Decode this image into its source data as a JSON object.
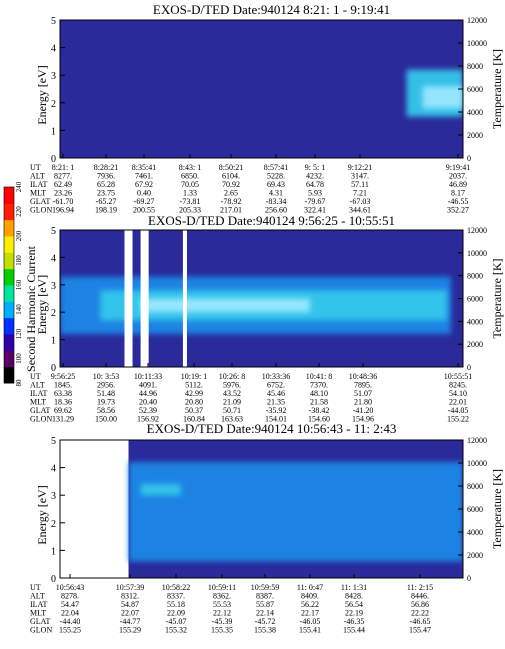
{
  "colors": {
    "background": "#2a2a9a",
    "band_low": "#2f3fc8",
    "band_mid": "#1e88e8",
    "band_core": "#36c8ec",
    "band_bright": "#9ae8ff",
    "gap": "#ffffff"
  },
  "colorbar": {
    "label": "Second Harmonic Current",
    "ticks": [
      "80",
      "100",
      "120",
      "140",
      "160",
      "180",
      "200",
      "220",
      "240"
    ],
    "colors": [
      "#000000",
      "#5a0066",
      "#3000aa",
      "#0030ff",
      "#00b0ff",
      "#00e6a0",
      "#00d000",
      "#c0e000",
      "#ffee00",
      "#ffa000",
      "#ff2000",
      "#ff0000"
    ]
  },
  "chart_data": [
    {
      "type": "heatmap",
      "title": "EXOS-D/TED   Date:940124   8:21: 1 - 9:19:41",
      "ylabel": "Energy [eV]",
      "y2label": "Temperature [K]",
      "ylim": [
        0,
        5
      ],
      "yticks": [
        "0",
        "1",
        "2",
        "3",
        "4",
        "5"
      ],
      "y2lim": [
        0,
        12000
      ],
      "y2ticks": [
        "0",
        "2000",
        "4000",
        "6000",
        "8000",
        "10000",
        "12000"
      ],
      "row_labels": [
        "UT",
        "ALT",
        "ILAT",
        "MLT",
        "GLAT",
        "GLON"
      ],
      "columns": [
        [
          "8:21: 1",
          "8277.",
          "62.49",
          "23.26",
          "-61.70",
          "196.94"
        ],
        [
          "8:28:21",
          "7936.",
          "65.28",
          "23.75",
          "-65.27",
          "198.19"
        ],
        [
          "8:35:41",
          "7461.",
          "67.92",
          "0.40",
          "-69.27",
          "200.55"
        ],
        [
          "8:43: 1",
          "6850.",
          "70.05",
          "1.33",
          "-73.81",
          "205.33"
        ],
        [
          "8:50:21",
          "6104.",
          "70.92",
          "2.65",
          "-78.92",
          "217.01"
        ],
        [
          "8:57:41",
          "5228.",
          "69.43",
          "4.31",
          "-83.34",
          "256.60"
        ],
        [
          "9: 5: 1",
          "4232.",
          "64.78",
          "5.93",
          "-79.67",
          "322.41"
        ],
        [
          "9:12:21",
          "3147.",
          "57.11",
          "7.21",
          "-67.03",
          "344.61"
        ],
        [
          "9:19:41",
          "2037.",
          "46.89",
          "8.17",
          "-46.55",
          "352.27"
        ]
      ],
      "features": [
        {
          "kind": "band",
          "x_range": [
            0.86,
            1.0
          ],
          "energy": [
            1.5,
            3.2
          ],
          "level": "core"
        },
        {
          "kind": "band",
          "x_range": [
            0.9,
            1.0
          ],
          "energy": [
            1.8,
            2.6
          ],
          "level": "bright"
        }
      ]
    },
    {
      "type": "heatmap",
      "title": "EXOS-D/TED   Date:940124   9:56:25 - 10:55:51",
      "ylabel": "Energy [eV]",
      "y2label": "Temperature [K]",
      "ylim": [
        0,
        5
      ],
      "yticks": [
        "0",
        "1",
        "2",
        "3",
        "4",
        "5"
      ],
      "y2lim": [
        0,
        12000
      ],
      "y2ticks": [
        "0",
        "2000",
        "4000",
        "6000",
        "8000",
        "10000",
        "12000"
      ],
      "row_labels": [
        "UT",
        "ALT",
        "ILAT",
        "MLT",
        "GLAT",
        "GLON"
      ],
      "columns": [
        [
          "9:56:25",
          "1845.",
          "63.38",
          "18.36",
          "69.62",
          "131.29"
        ],
        [
          "10: 3:53",
          "2956.",
          "51.48",
          "19.73",
          "58.56",
          "150.00"
        ],
        [
          "10:11:33",
          "4091.",
          "44.96",
          "20.40",
          "52.39",
          "156.92"
        ],
        [
          "10:19: 1",
          "5112.",
          "42.99",
          "20.80",
          "50.37",
          "160.84"
        ],
        [
          "10:26: 8",
          "5976.",
          "43.52",
          "21.09",
          "50.71",
          "163.63"
        ],
        [
          "10:33:36",
          "6752.",
          "45.46",
          "21.35",
          "-35.92",
          "154.01"
        ],
        [
          "10:41: 8",
          "7370.",
          "48.10",
          "21.58",
          "-38.42",
          "154.60"
        ],
        [
          "10:48:36",
          "7895.",
          "51.07",
          "21.80",
          "-41.20",
          "154.96"
        ],
        [
          "10:55:51",
          "8245.",
          "54.10",
          "22.01",
          "-44.05",
          "155.22"
        ]
      ],
      "features": [
        {
          "kind": "band",
          "x_range": [
            0.0,
            0.97
          ],
          "energy": [
            1.2,
            3.3
          ],
          "level": "mid"
        },
        {
          "kind": "band",
          "x_range": [
            0.1,
            0.96
          ],
          "energy": [
            1.7,
            2.8
          ],
          "level": "core"
        },
        {
          "kind": "band",
          "x_range": [
            0.2,
            0.62
          ],
          "energy": [
            2.0,
            2.5
          ],
          "level": "bright"
        },
        {
          "kind": "gap",
          "x_range": [
            0.16,
            0.18
          ]
        },
        {
          "kind": "gap",
          "x_range": [
            0.2,
            0.22
          ]
        },
        {
          "kind": "gap",
          "x_range": [
            0.305,
            0.315
          ]
        }
      ]
    },
    {
      "type": "heatmap",
      "title": "EXOS-D/TED   Date:940124   10:56:43 - 11: 2:43",
      "ylabel": "Energy [eV]",
      "y2label": "Temperature [K]",
      "ylim": [
        0,
        5
      ],
      "yticks": [
        "0",
        "1",
        "2",
        "3",
        "4",
        "5"
      ],
      "y2lim": [
        0,
        12000
      ],
      "y2ticks": [
        "0",
        "2000",
        "4000",
        "6000",
        "8000",
        "10000",
        "12000"
      ],
      "row_labels": [
        "UT",
        "ALT",
        "ILAT",
        "MLT",
        "GLAT",
        "GLON"
      ],
      "columns": [
        [
          "10:56:43",
          "8278.",
          "54.47",
          "22.04",
          "-44.40",
          "155.25"
        ],
        [
          "10:57:39",
          "8312.",
          "54.87",
          "22.07",
          "-44.77",
          "155.29"
        ],
        [
          "10:58:22",
          "8337.",
          "55.18",
          "22.09",
          "-45.07",
          "155.32"
        ],
        [
          "10:59:11",
          "8362.",
          "55.53",
          "22.12",
          "-45.39",
          "155.35"
        ],
        [
          "10:59:59",
          "8387.",
          "55.87",
          "22.14",
          "-45.72",
          "155.38"
        ],
        [
          "11: 0:47",
          "8409.",
          "56.22",
          "22.17",
          "-46.05",
          "155.41"
        ],
        [
          "11: 1:31",
          "8428.",
          "56.54",
          "22.19",
          "-46.35",
          "155.44"
        ],
        [
          "11: 2:15",
          "8446.",
          "56.86",
          "22.22",
          "-46.65",
          "155.47"
        ]
      ],
      "features": [
        {
          "kind": "gap",
          "x_range": [
            0.0,
            0.17
          ]
        },
        {
          "kind": "band",
          "x_range": [
            0.17,
            1.0
          ],
          "energy": [
            0.6,
            4.2
          ],
          "level": "mid"
        },
        {
          "kind": "band",
          "x_range": [
            0.2,
            0.3
          ],
          "energy": [
            3.0,
            3.4
          ],
          "level": "core"
        }
      ]
    }
  ]
}
